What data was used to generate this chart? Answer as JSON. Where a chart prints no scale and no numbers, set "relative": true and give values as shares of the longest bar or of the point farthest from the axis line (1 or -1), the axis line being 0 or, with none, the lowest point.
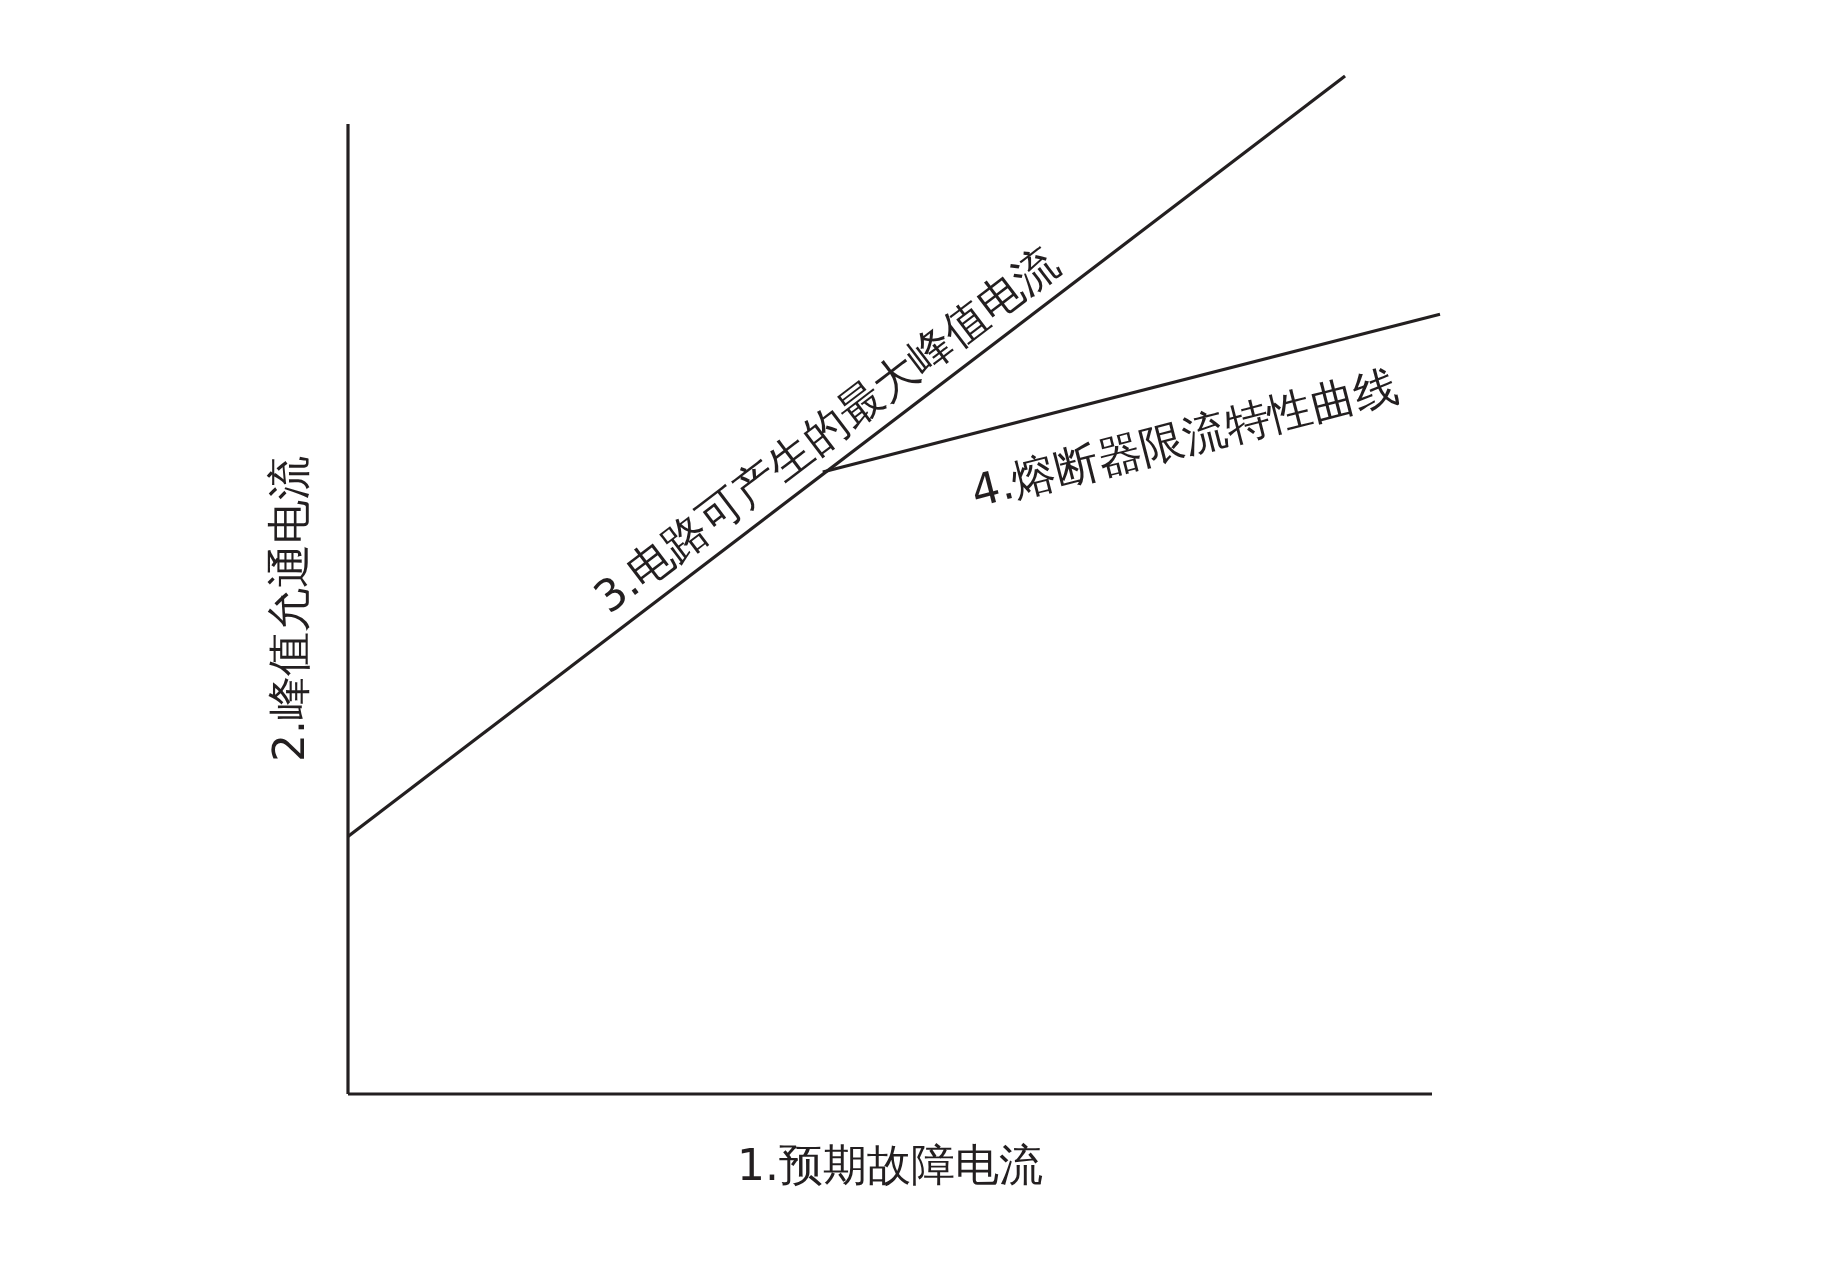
{
  "chart_data": {
    "type": "line",
    "relative": true,
    "xlabel": "1.预期故障电流",
    "ylabel": "2.峰值允通电流",
    "marker": "none",
    "line_style": "solid",
    "categories": [
      null,
      null,
      null,
      null,
      null,
      null,
      null,
      null,
      null,
      null,
      null,
      null,
      null,
      null,
      null,
      null,
      null,
      null,
      null,
      null,
      null,
      null,
      null,
      null
    ],
    "series": [
      {
        "name": "3.电路可产生的最大峰值电流",
        "color": "#231f20",
        "values": [
          0.253,
          null,
          null,
          null,
          null,
          null,
          null,
          null,
          null,
          null,
          null,
          null,
          null,
          null,
          null,
          null,
          null,
          null,
          null,
          null,
          null,
          1,
          null,
          null
        ]
      },
      {
        "name": "4.熔断器限流特性曲线",
        "color": "#231f20",
        "values": [
          null,
          null,
          null,
          null,
          null,
          null,
          null,
          null,
          null,
          null,
          0.611,
          null,
          null,
          null,
          null,
          null,
          null,
          null,
          null,
          null,
          null,
          null,
          null,
          0.766
        ]
      }
    ]
  }
}
